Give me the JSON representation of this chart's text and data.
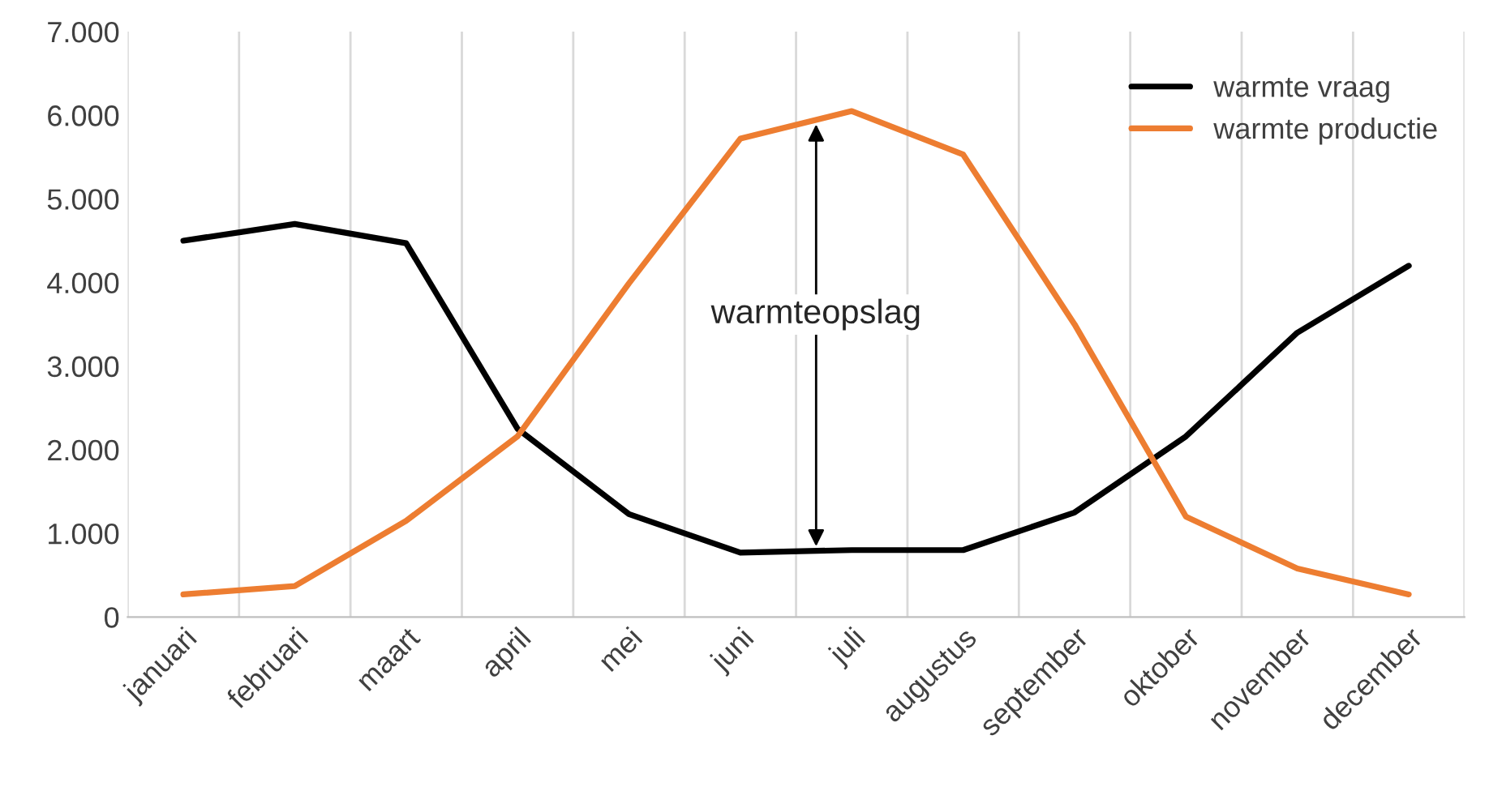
{
  "chart_data": {
    "type": "line",
    "categories": [
      "januari",
      "februari",
      "maart",
      "april",
      "mei",
      "juni",
      "juli",
      "augustus",
      "september",
      "oktober",
      "november",
      "december"
    ],
    "series": [
      {
        "name": "warmte vraag",
        "color": "#000000",
        "values": [
          4500,
          4700,
          4470,
          2250,
          1230,
          770,
          800,
          800,
          1250,
          2160,
          3400,
          4200
        ]
      },
      {
        "name": "warmte productie",
        "color": "#ed7d31",
        "values": [
          270,
          370,
          1150,
          2160,
          3990,
          5720,
          6050,
          5530,
          3500,
          1200,
          580,
          270
        ]
      }
    ],
    "ylim": [
      0,
      7000
    ],
    "yticks": [
      {
        "value": 0,
        "label": "0"
      },
      {
        "value": 1000,
        "label": "1.000"
      },
      {
        "value": 2000,
        "label": "2.000"
      },
      {
        "value": 3000,
        "label": "3.000"
      },
      {
        "value": 4000,
        "label": "4.000"
      },
      {
        "value": 5000,
        "label": "5.000"
      },
      {
        "value": 6000,
        "label": "6.000"
      },
      {
        "value": 7000,
        "label": "7.000"
      }
    ],
    "grid": "x",
    "legend": "top right",
    "annotations": [
      "warmteopslag"
    ]
  }
}
